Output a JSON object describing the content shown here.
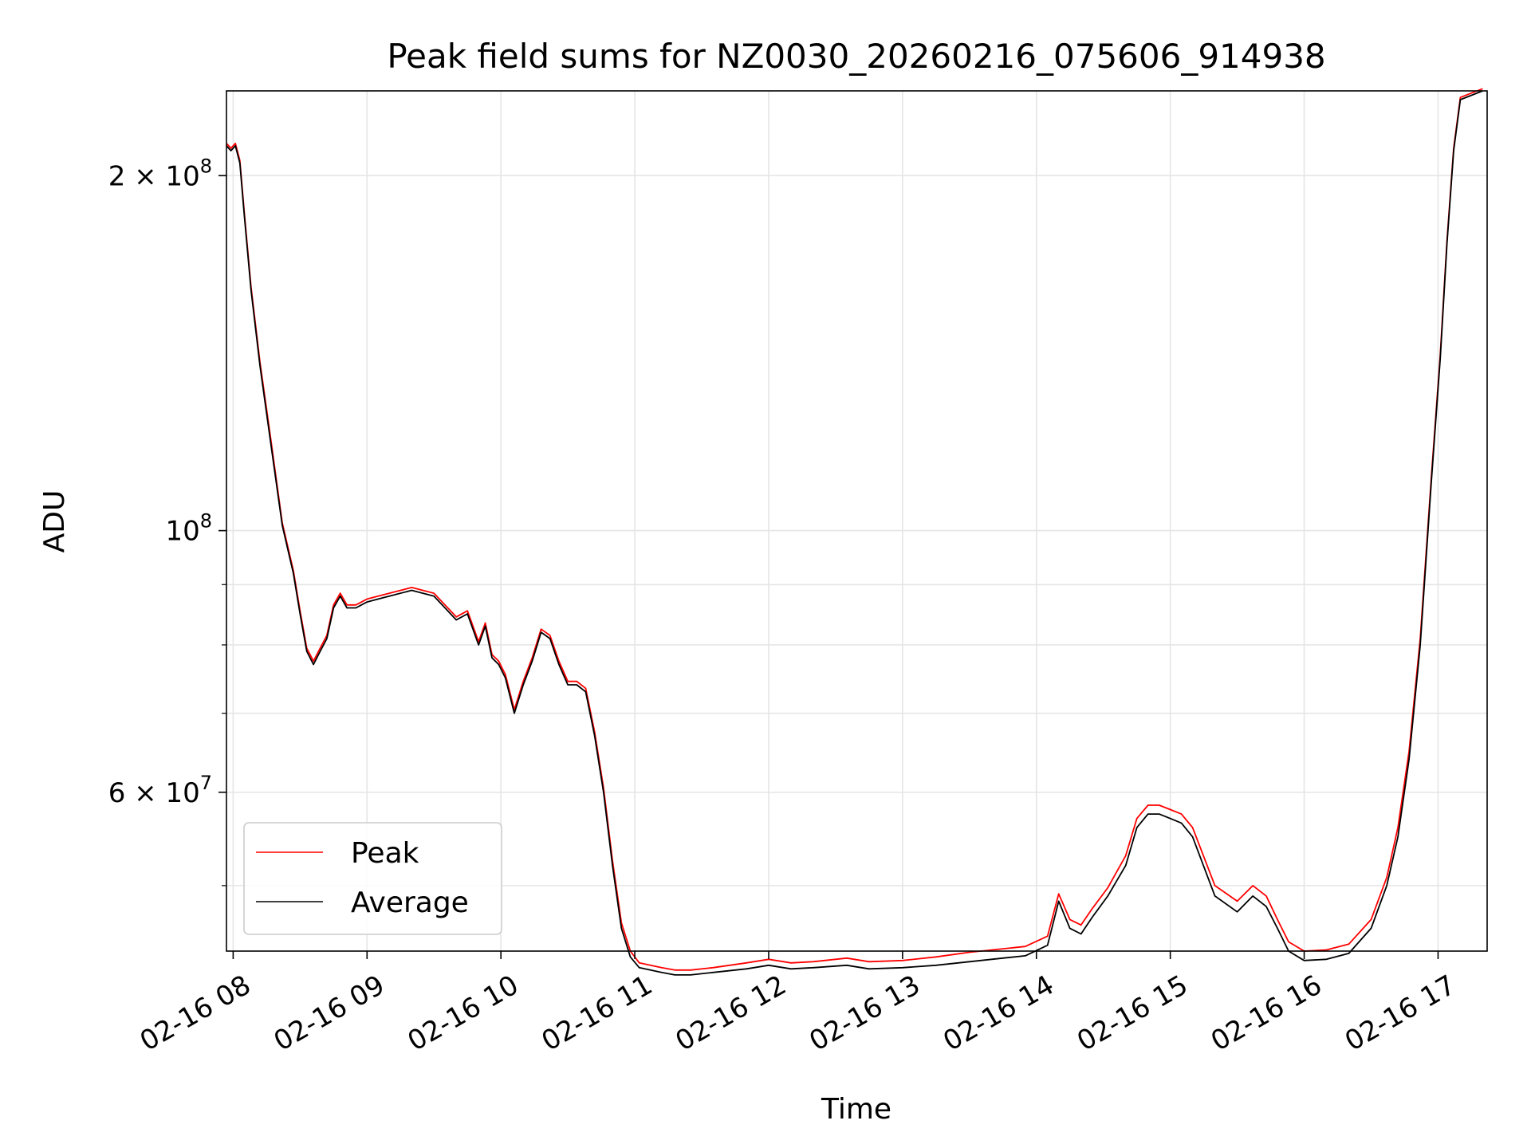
{
  "chart_data": {
    "type": "line",
    "title": "Peak field sums for NZ0030_20260216_075606_914938",
    "xlabel": "Time",
    "ylabel": "ADU",
    "yscale": "log",
    "grid": true,
    "legend_position": "lower-left",
    "xlim": [
      "2026-02-16T07:57:00",
      "2026-02-16T17:22:00"
    ],
    "ylim": [
      44000000,
      236000000
    ],
    "x_ticks": [
      {
        "value": "2026-02-16T08:00",
        "label": "02-16 08"
      },
      {
        "value": "2026-02-16T09:00",
        "label": "02-16 09"
      },
      {
        "value": "2026-02-16T10:00",
        "label": "02-16 10"
      },
      {
        "value": "2026-02-16T11:00",
        "label": "02-16 11"
      },
      {
        "value": "2026-02-16T12:00",
        "label": "02-16 12"
      },
      {
        "value": "2026-02-16T13:00",
        "label": "02-16 13"
      },
      {
        "value": "2026-02-16T14:00",
        "label": "02-16 14"
      },
      {
        "value": "2026-02-16T15:00",
        "label": "02-16 15"
      },
      {
        "value": "2026-02-16T16:00",
        "label": "02-16 16"
      },
      {
        "value": "2026-02-16T17:00",
        "label": "02-16 17"
      }
    ],
    "y_major_ticks": [
      {
        "value": 60000000,
        "mant": "6",
        "exp": "7"
      },
      {
        "value": 100000000,
        "mant": "",
        "exp": "8"
      },
      {
        "value": 200000000,
        "mant": "2",
        "exp": "8"
      }
    ],
    "y_minor_ticks": [
      50000000,
      70000000,
      80000000,
      90000000
    ],
    "series": [
      {
        "name": "Average",
        "color": "#000000",
        "x": [
          "2026-02-16T07:57",
          "2026-02-16T07:59",
          "2026-02-16T08:01",
          "2026-02-16T08:03",
          "2026-02-16T08:05",
          "2026-02-16T08:08",
          "2026-02-16T08:12",
          "2026-02-16T08:17",
          "2026-02-16T08:22",
          "2026-02-16T08:27",
          "2026-02-16T08:30",
          "2026-02-16T08:33",
          "2026-02-16T08:36",
          "2026-02-16T08:39",
          "2026-02-16T08:42",
          "2026-02-16T08:45",
          "2026-02-16T08:48",
          "2026-02-16T08:51",
          "2026-02-16T08:55",
          "2026-02-16T09:00",
          "2026-02-16T09:05",
          "2026-02-16T09:10",
          "2026-02-16T09:20",
          "2026-02-16T09:30",
          "2026-02-16T09:40",
          "2026-02-16T09:45",
          "2026-02-16T09:50",
          "2026-02-16T09:53",
          "2026-02-16T09:56",
          "2026-02-16T09:59",
          "2026-02-16T10:02",
          "2026-02-16T10:06",
          "2026-02-16T10:10",
          "2026-02-16T10:14",
          "2026-02-16T10:18",
          "2026-02-16T10:22",
          "2026-02-16T10:26",
          "2026-02-16T10:30",
          "2026-02-16T10:34",
          "2026-02-16T10:38",
          "2026-02-16T10:42",
          "2026-02-16T10:46",
          "2026-02-16T10:50",
          "2026-02-16T10:54",
          "2026-02-16T10:58",
          "2026-02-16T11:02",
          "2026-02-16T11:07",
          "2026-02-16T11:12",
          "2026-02-16T11:18",
          "2026-02-16T11:25",
          "2026-02-16T11:35",
          "2026-02-16T11:50",
          "2026-02-16T12:00",
          "2026-02-16T12:10",
          "2026-02-16T12:20",
          "2026-02-16T12:35",
          "2026-02-16T12:45",
          "2026-02-16T13:00",
          "2026-02-16T13:15",
          "2026-02-16T13:30",
          "2026-02-16T13:45",
          "2026-02-16T13:55",
          "2026-02-16T14:05",
          "2026-02-16T14:10",
          "2026-02-16T14:15",
          "2026-02-16T14:20",
          "2026-02-16T14:25",
          "2026-02-16T14:32",
          "2026-02-16T14:40",
          "2026-02-16T14:45",
          "2026-02-16T14:50",
          "2026-02-16T14:55",
          "2026-02-16T15:00",
          "2026-02-16T15:05",
          "2026-02-16T15:10",
          "2026-02-16T15:20",
          "2026-02-16T15:30",
          "2026-02-16T15:37",
          "2026-02-16T15:43",
          "2026-02-16T15:48",
          "2026-02-16T15:53",
          "2026-02-16T16:00",
          "2026-02-16T16:10",
          "2026-02-16T16:20",
          "2026-02-16T16:30",
          "2026-02-16T16:37",
          "2026-02-16T16:42",
          "2026-02-16T16:47",
          "2026-02-16T16:52",
          "2026-02-16T16:57",
          "2026-02-16T17:01",
          "2026-02-16T17:04",
          "2026-02-16T17:07",
          "2026-02-16T17:10",
          "2026-02-16T17:15",
          "2026-02-16T17:20"
        ],
        "values": [
          212000000,
          210000000,
          212000000,
          205000000,
          185000000,
          160000000,
          138000000,
          118000000,
          101000000,
          92000000,
          85000000,
          79000000,
          77000000,
          79000000,
          81000000,
          86000000,
          88000000,
          86000000,
          86000000,
          87000000,
          87500000,
          88000000,
          89000000,
          88000000,
          84000000,
          85000000,
          80000000,
          83000000,
          78000000,
          77000000,
          75000000,
          70000000,
          74000000,
          77500000,
          82000000,
          81000000,
          77000000,
          74000000,
          74000000,
          73000000,
          67000000,
          60000000,
          52000000,
          46000000,
          43500000,
          42600000,
          42400000,
          42200000,
          42000000,
          42000000,
          42200000,
          42500000,
          42800000,
          42500000,
          42600000,
          42800000,
          42500000,
          42600000,
          42800000,
          43100000,
          43400000,
          43600000,
          44500000,
          48500000,
          46000000,
          45500000,
          47000000,
          49000000,
          52000000,
          56000000,
          57500000,
          57500000,
          57000000,
          56500000,
          55000000,
          49000000,
          47500000,
          49000000,
          48000000,
          46000000,
          44000000,
          43200000,
          43300000,
          43800000,
          46000000,
          50000000,
          55000000,
          64000000,
          80000000,
          110000000,
          140000000,
          175000000,
          210000000,
          232000000,
          234000000,
          236000000
        ]
      },
      {
        "name": "Peak",
        "color": "#ff0000",
        "x": [
          "2026-02-16T07:57",
          "2026-02-16T07:59",
          "2026-02-16T08:01",
          "2026-02-16T08:03",
          "2026-02-16T08:05",
          "2026-02-16T08:08",
          "2026-02-16T08:12",
          "2026-02-16T08:17",
          "2026-02-16T08:22",
          "2026-02-16T08:27",
          "2026-02-16T08:30",
          "2026-02-16T08:33",
          "2026-02-16T08:36",
          "2026-02-16T08:39",
          "2026-02-16T08:42",
          "2026-02-16T08:45",
          "2026-02-16T08:48",
          "2026-02-16T08:51",
          "2026-02-16T08:55",
          "2026-02-16T09:00",
          "2026-02-16T09:05",
          "2026-02-16T09:10",
          "2026-02-16T09:20",
          "2026-02-16T09:30",
          "2026-02-16T09:40",
          "2026-02-16T09:45",
          "2026-02-16T09:50",
          "2026-02-16T09:53",
          "2026-02-16T09:56",
          "2026-02-16T09:59",
          "2026-02-16T10:02",
          "2026-02-16T10:06",
          "2026-02-16T10:10",
          "2026-02-16T10:14",
          "2026-02-16T10:18",
          "2026-02-16T10:22",
          "2026-02-16T10:26",
          "2026-02-16T10:30",
          "2026-02-16T10:34",
          "2026-02-16T10:38",
          "2026-02-16T10:42",
          "2026-02-16T10:46",
          "2026-02-16T10:50",
          "2026-02-16T10:54",
          "2026-02-16T10:58",
          "2026-02-16T11:02",
          "2026-02-16T11:07",
          "2026-02-16T11:12",
          "2026-02-16T11:18",
          "2026-02-16T11:25",
          "2026-02-16T11:35",
          "2026-02-16T11:50",
          "2026-02-16T12:00",
          "2026-02-16T12:10",
          "2026-02-16T12:20",
          "2026-02-16T12:35",
          "2026-02-16T12:45",
          "2026-02-16T13:00",
          "2026-02-16T13:15",
          "2026-02-16T13:30",
          "2026-02-16T13:45",
          "2026-02-16T13:55",
          "2026-02-16T14:05",
          "2026-02-16T14:10",
          "2026-02-16T14:15",
          "2026-02-16T14:20",
          "2026-02-16T14:25",
          "2026-02-16T14:32",
          "2026-02-16T14:40",
          "2026-02-16T14:45",
          "2026-02-16T14:50",
          "2026-02-16T14:55",
          "2026-02-16T15:00",
          "2026-02-16T15:05",
          "2026-02-16T15:10",
          "2026-02-16T15:20",
          "2026-02-16T15:30",
          "2026-02-16T15:37",
          "2026-02-16T15:43",
          "2026-02-16T15:48",
          "2026-02-16T15:53",
          "2026-02-16T16:00",
          "2026-02-16T16:10",
          "2026-02-16T16:20",
          "2026-02-16T16:30",
          "2026-02-16T16:37",
          "2026-02-16T16:42",
          "2026-02-16T16:47",
          "2026-02-16T16:52",
          "2026-02-16T16:57",
          "2026-02-16T17:01",
          "2026-02-16T17:04",
          "2026-02-16T17:07",
          "2026-02-16T17:10",
          "2026-02-16T17:15",
          "2026-02-16T17:20"
        ],
        "values": [
          213000000,
          211000000,
          213000000,
          206000000,
          186000000,
          161000000,
          139000000,
          119000000,
          101500000,
          92500000,
          85500000,
          79500000,
          77500000,
          79500000,
          81500000,
          86500000,
          88500000,
          86500000,
          86500000,
          87500000,
          88000000,
          88500000,
          89500000,
          88500000,
          84500000,
          85500000,
          80500000,
          83500000,
          78500000,
          77500000,
          75500000,
          70500000,
          74500000,
          78000000,
          82500000,
          81500000,
          77500000,
          74500000,
          74500000,
          73500000,
          67500000,
          60500000,
          52500000,
          46500000,
          44000000,
          43000000,
          42800000,
          42600000,
          42400000,
          42400000,
          42600000,
          43000000,
          43300000,
          43000000,
          43100000,
          43400000,
          43100000,
          43200000,
          43500000,
          43900000,
          44200000,
          44400000,
          45300000,
          49200000,
          46800000,
          46300000,
          47800000,
          49800000,
          53000000,
          57000000,
          58500000,
          58500000,
          58000000,
          57500000,
          56000000,
          50000000,
          48500000,
          50000000,
          49000000,
          46800000,
          44800000,
          44000000,
          44100000,
          44600000,
          46800000,
          50800000,
          56000000,
          65000000,
          81000000,
          111000000,
          141000000,
          176000000,
          211000000,
          233000000,
          235000000,
          237000000
        ]
      }
    ]
  }
}
